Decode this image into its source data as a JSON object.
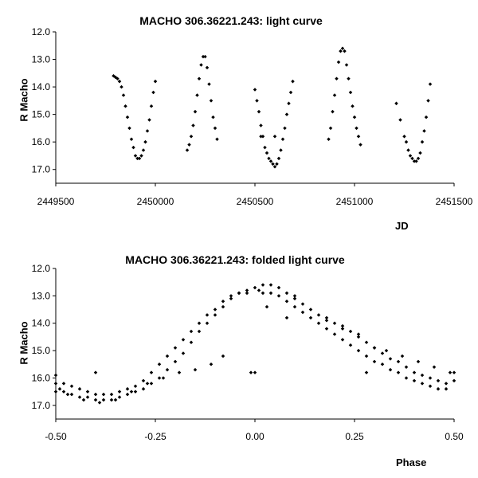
{
  "chart_data": [
    {
      "type": "scatter",
      "title": "MACHO 306.36221.243: light curve",
      "xlabel": "JD",
      "ylabel": "R Macho",
      "xlim": [
        2449500,
        2451500
      ],
      "ylim": [
        12.0,
        17.5
      ],
      "y_inverted": true,
      "grid": false,
      "legend": "none",
      "x_ticks": [
        "2449500",
        "2450000",
        "2450500",
        "2451000",
        "2451500"
      ],
      "y_ticks": [
        "12.0",
        "13.0",
        "14.0",
        "15.0",
        "16.0",
        "17.0"
      ],
      "marker_color": "#000000",
      "points": [
        [
          2449790,
          13.6
        ],
        [
          2449800,
          13.65
        ],
        [
          2449810,
          13.7
        ],
        [
          2449820,
          13.8
        ],
        [
          2449830,
          14.0
        ],
        [
          2449840,
          14.3
        ],
        [
          2449850,
          14.7
        ],
        [
          2449860,
          15.1
        ],
        [
          2449870,
          15.5
        ],
        [
          2449880,
          15.9
        ],
        [
          2449890,
          16.2
        ],
        [
          2449900,
          16.5
        ],
        [
          2449910,
          16.6
        ],
        [
          2449920,
          16.6
        ],
        [
          2449930,
          16.5
        ],
        [
          2449940,
          16.3
        ],
        [
          2449950,
          16.0
        ],
        [
          2449960,
          15.6
        ],
        [
          2449970,
          15.2
        ],
        [
          2449980,
          14.7
        ],
        [
          2449990,
          14.2
        ],
        [
          2450000,
          13.8
        ],
        [
          2450160,
          16.3
        ],
        [
          2450170,
          16.1
        ],
        [
          2450180,
          15.8
        ],
        [
          2450190,
          15.4
        ],
        [
          2450200,
          14.9
        ],
        [
          2450210,
          14.3
        ],
        [
          2450220,
          13.7
        ],
        [
          2450230,
          13.2
        ],
        [
          2450240,
          12.9
        ],
        [
          2450250,
          12.9
        ],
        [
          2450260,
          13.3
        ],
        [
          2450270,
          13.9
        ],
        [
          2450280,
          14.5
        ],
        [
          2450290,
          15.1
        ],
        [
          2450300,
          15.5
        ],
        [
          2450310,
          15.9
        ],
        [
          2450500,
          14.1
        ],
        [
          2450510,
          14.5
        ],
        [
          2450520,
          14.9
        ],
        [
          2450530,
          15.4
        ],
        [
          2450540,
          15.8
        ],
        [
          2450550,
          16.2
        ],
        [
          2450560,
          16.4
        ],
        [
          2450570,
          16.6
        ],
        [
          2450580,
          16.7
        ],
        [
          2450590,
          16.8
        ],
        [
          2450600,
          16.9
        ],
        [
          2450610,
          16.8
        ],
        [
          2450620,
          16.6
        ],
        [
          2450630,
          16.3
        ],
        [
          2450640,
          15.9
        ],
        [
          2450650,
          15.5
        ],
        [
          2450660,
          15.0
        ],
        [
          2450670,
          14.6
        ],
        [
          2450680,
          14.2
        ],
        [
          2450690,
          13.8
        ],
        [
          2450530,
          15.8
        ],
        [
          2450600,
          15.8
        ],
        [
          2450870,
          15.9
        ],
        [
          2450880,
          15.5
        ],
        [
          2450890,
          14.9
        ],
        [
          2450900,
          14.3
        ],
        [
          2450910,
          13.7
        ],
        [
          2450920,
          13.1
        ],
        [
          2450930,
          12.7
        ],
        [
          2450940,
          12.6
        ],
        [
          2450950,
          12.7
        ],
        [
          2450960,
          13.2
        ],
        [
          2450970,
          13.7
        ],
        [
          2450980,
          14.2
        ],
        [
          2450990,
          14.7
        ],
        [
          2451000,
          15.1
        ],
        [
          2451010,
          15.5
        ],
        [
          2451020,
          15.8
        ],
        [
          2451030,
          16.1
        ],
        [
          2451210,
          14.6
        ],
        [
          2451230,
          15.2
        ],
        [
          2451250,
          15.8
        ],
        [
          2451260,
          16.0
        ],
        [
          2451270,
          16.3
        ],
        [
          2451280,
          16.5
        ],
        [
          2451290,
          16.6
        ],
        [
          2451300,
          16.7
        ],
        [
          2451310,
          16.7
        ],
        [
          2451320,
          16.6
        ],
        [
          2451330,
          16.4
        ],
        [
          2451340,
          16.0
        ],
        [
          2451350,
          15.6
        ],
        [
          2451360,
          15.1
        ],
        [
          2451370,
          14.5
        ],
        [
          2451380,
          13.9
        ]
      ]
    },
    {
      "type": "scatter",
      "title": "MACHO 306.36221.243: folded light curve",
      "xlabel": "Phase",
      "ylabel": "R Macho",
      "xlim": [
        -0.5,
        0.5
      ],
      "ylim": [
        12.0,
        17.5
      ],
      "y_inverted": true,
      "grid": false,
      "legend": "none",
      "x_ticks": [
        "-0.50",
        "-0.25",
        "0.00",
        "0.25",
        "0.50"
      ],
      "y_ticks": [
        "12.0",
        "13.0",
        "14.0",
        "15.0",
        "16.0",
        "17.0"
      ],
      "marker_color": "#000000",
      "points": [
        [
          -0.5,
          15.9
        ],
        [
          -0.49,
          16.4
        ],
        [
          -0.48,
          16.5
        ],
        [
          -0.46,
          16.6
        ],
        [
          -0.44,
          16.7
        ],
        [
          -0.42,
          16.7
        ],
        [
          -0.4,
          16.8
        ],
        [
          -0.38,
          16.8
        ],
        [
          -0.36,
          16.8
        ],
        [
          -0.34,
          16.7
        ],
        [
          -0.32,
          16.6
        ],
        [
          -0.3,
          16.5
        ],
        [
          -0.28,
          16.4
        ],
        [
          -0.26,
          16.2
        ],
        [
          -0.24,
          16.0
        ],
        [
          -0.22,
          15.7
        ],
        [
          -0.2,
          15.4
        ],
        [
          -0.18,
          15.1
        ],
        [
          -0.16,
          14.7
        ],
        [
          -0.14,
          14.3
        ],
        [
          -0.12,
          14.0
        ],
        [
          -0.1,
          13.7
        ],
        [
          -0.08,
          13.4
        ],
        [
          -0.06,
          13.1
        ],
        [
          -0.04,
          12.9
        ],
        [
          -0.02,
          12.8
        ],
        [
          0.0,
          12.7
        ],
        [
          -0.5,
          16.2
        ],
        [
          -0.48,
          16.2
        ],
        [
          -0.46,
          16.3
        ],
        [
          -0.44,
          16.4
        ],
        [
          -0.42,
          16.5
        ],
        [
          -0.4,
          16.6
        ],
        [
          -0.38,
          16.6
        ],
        [
          -0.36,
          16.6
        ],
        [
          -0.34,
          16.5
        ],
        [
          -0.32,
          16.4
        ],
        [
          -0.3,
          16.3
        ],
        [
          -0.28,
          16.1
        ],
        [
          -0.26,
          15.8
        ],
        [
          -0.24,
          15.5
        ],
        [
          -0.22,
          15.2
        ],
        [
          -0.2,
          14.9
        ],
        [
          -0.18,
          14.6
        ],
        [
          -0.16,
          14.3
        ],
        [
          -0.14,
          14.0
        ],
        [
          -0.12,
          13.7
        ],
        [
          -0.1,
          13.5
        ],
        [
          -0.08,
          13.2
        ],
        [
          -0.06,
          13.0
        ],
        [
          -0.04,
          12.9
        ],
        [
          -0.02,
          12.9
        ],
        [
          -0.5,
          16.5
        ],
        [
          -0.47,
          16.6
        ],
        [
          -0.43,
          16.8
        ],
        [
          -0.39,
          16.9
        ],
        [
          -0.35,
          16.8
        ],
        [
          -0.31,
          16.5
        ],
        [
          -0.27,
          16.2
        ],
        [
          -0.23,
          16.0
        ],
        [
          -0.19,
          15.8
        ],
        [
          -0.15,
          15.7
        ],
        [
          -0.11,
          15.5
        ],
        [
          -0.08,
          15.2
        ],
        [
          -0.4,
          15.8
        ],
        [
          -0.01,
          15.8
        ],
        [
          0.0,
          15.8
        ],
        [
          0.01,
          12.8
        ],
        [
          0.02,
          12.6
        ],
        [
          0.04,
          12.6
        ],
        [
          0.06,
          12.7
        ],
        [
          0.08,
          12.9
        ],
        [
          0.1,
          13.1
        ],
        [
          0.12,
          13.3
        ],
        [
          0.14,
          13.5
        ],
        [
          0.16,
          13.7
        ],
        [
          0.18,
          13.9
        ],
        [
          0.2,
          14.0
        ],
        [
          0.22,
          14.1
        ],
        [
          0.24,
          14.3
        ],
        [
          0.26,
          14.5
        ],
        [
          0.28,
          14.7
        ],
        [
          0.3,
          14.9
        ],
        [
          0.32,
          15.1
        ],
        [
          0.34,
          15.3
        ],
        [
          0.36,
          15.4
        ],
        [
          0.38,
          15.6
        ],
        [
          0.4,
          15.8
        ],
        [
          0.42,
          15.9
        ],
        [
          0.44,
          16.0
        ],
        [
          0.46,
          16.1
        ],
        [
          0.48,
          16.2
        ],
        [
          0.5,
          16.1
        ],
        [
          0.02,
          12.9
        ],
        [
          0.04,
          12.9
        ],
        [
          0.06,
          13.0
        ],
        [
          0.08,
          13.2
        ],
        [
          0.1,
          13.4
        ],
        [
          0.12,
          13.6
        ],
        [
          0.14,
          13.8
        ],
        [
          0.16,
          14.0
        ],
        [
          0.18,
          14.2
        ],
        [
          0.2,
          14.4
        ],
        [
          0.22,
          14.6
        ],
        [
          0.24,
          14.8
        ],
        [
          0.26,
          15.0
        ],
        [
          0.28,
          15.2
        ],
        [
          0.3,
          15.4
        ],
        [
          0.32,
          15.5
        ],
        [
          0.34,
          15.7
        ],
        [
          0.36,
          15.8
        ],
        [
          0.38,
          16.0
        ],
        [
          0.4,
          16.1
        ],
        [
          0.42,
          16.2
        ],
        [
          0.44,
          16.3
        ],
        [
          0.46,
          16.4
        ],
        [
          0.48,
          16.4
        ],
        [
          0.5,
          15.8
        ],
        [
          0.03,
          13.4
        ],
        [
          0.08,
          13.8
        ],
        [
          0.1,
          13.0
        ],
        [
          0.18,
          13.8
        ],
        [
          0.22,
          14.2
        ],
        [
          0.26,
          14.4
        ],
        [
          0.3,
          14.9
        ],
        [
          0.33,
          15.0
        ],
        [
          0.37,
          15.2
        ],
        [
          0.41,
          15.4
        ],
        [
          0.45,
          15.6
        ],
        [
          0.49,
          15.8
        ],
        [
          0.28,
          15.8
        ]
      ]
    }
  ]
}
